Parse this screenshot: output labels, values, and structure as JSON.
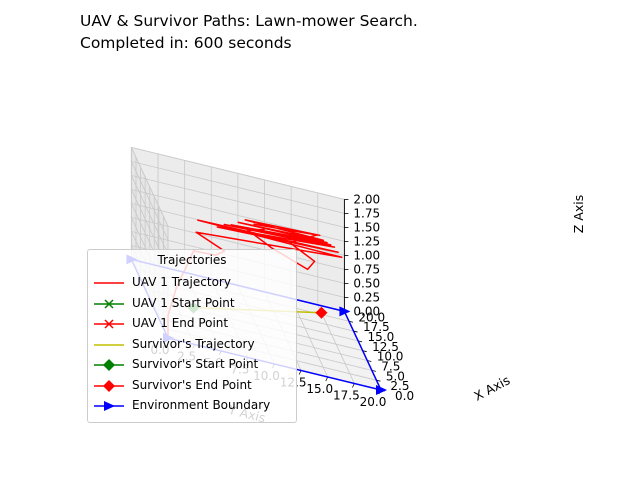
{
  "chart_data": {
    "type": "line",
    "projection": "3d",
    "title": "UAV & Survivor Paths: Lawn-mower Search.",
    "subtitle": "Completed in: 600 seconds",
    "xlabel": "X Axis",
    "ylabel": "Y Axis",
    "zlabel": "Z Axis",
    "xlim": [
      0,
      20
    ],
    "ylim": [
      0,
      20
    ],
    "zlim": [
      0,
      2
    ],
    "x_ticks": [
      "0.0",
      "2.5",
      "5.0",
      "7.5",
      "10.0",
      "12.5",
      "15.0",
      "17.5",
      "20.0"
    ],
    "y_ticks": [
      "0.0",
      "2.5",
      "5.0",
      "7.5",
      "10.0",
      "12.5",
      "15.0",
      "17.5",
      "20.0"
    ],
    "z_ticks": [
      "0.00",
      "0.25",
      "0.50",
      "0.75",
      "1.00",
      "1.25",
      "1.50",
      "1.75",
      "2.00"
    ],
    "grid": true,
    "legend": {
      "title": "Trajectories",
      "placement": "lower-left",
      "entries": [
        {
          "label": "UAV 1 Trajectory",
          "color": "#ff0000",
          "style": "line"
        },
        {
          "label": "UAV 1 Start Point",
          "color": "#008000",
          "style": "x"
        },
        {
          "label": "UAV 1 End Point",
          "color": "#ff0000",
          "style": "x"
        },
        {
          "label": "Survivor's Trajectory",
          "color": "#bfbf00",
          "style": "line"
        },
        {
          "label": "Survivor's Start Point",
          "color": "#008000",
          "style": "diamond"
        },
        {
          "label": "Survivor's End Point",
          "color": "#ff0000",
          "style": "diamond"
        },
        {
          "label": "Environment Boundary",
          "color": "#0000ff",
          "style": "triangle"
        }
      ]
    },
    "series": [
      {
        "name": "UAV 1 Trajectory",
        "color": "#ff0000",
        "points": [
          [
            0,
            0,
            0
          ],
          [
            0,
            0,
            0.4
          ],
          [
            1,
            1,
            0.9
          ],
          [
            2,
            2,
            1.2
          ],
          [
            3,
            3.5,
            1.45
          ],
          [
            5,
            3,
            1.5
          ],
          [
            6,
            4,
            1.55
          ],
          [
            3.5,
            5,
            1.7
          ],
          [
            17,
            4,
            1.95
          ],
          [
            4,
            7,
            1.8
          ],
          [
            17,
            6,
            1.9
          ],
          [
            6,
            8,
            1.7
          ],
          [
            17,
            8,
            1.85
          ],
          [
            7,
            10,
            1.65
          ],
          [
            17,
            10,
            1.75
          ],
          [
            8,
            12,
            1.55
          ],
          [
            17,
            12,
            1.65
          ],
          [
            9,
            14,
            1.5
          ],
          [
            17,
            14,
            1.55
          ],
          [
            10,
            16,
            1.45
          ],
          [
            17,
            16,
            1.5
          ],
          [
            11,
            17,
            1.35
          ],
          [
            17,
            17.5,
            1.4
          ],
          [
            14,
            15,
            1.3
          ],
          [
            16,
            13,
            1.2
          ],
          [
            15,
            11,
            1.15
          ],
          [
            12,
            13,
            1.25
          ],
          [
            10,
            15,
            1.35
          ],
          [
            12,
            17,
            1.3
          ]
        ]
      },
      {
        "name": "Survivor's Trajectory",
        "color": "#bfbf00",
        "points": [
          [
            4.2,
            10.5,
            0
          ],
          [
            17.5,
            18,
            0
          ]
        ]
      },
      {
        "name": "Environment Boundary",
        "color": "#0000ff",
        "points": [
          [
            0,
            0,
            0
          ],
          [
            20,
            0,
            0
          ],
          [
            20,
            20,
            0
          ],
          [
            0,
            20,
            0
          ],
          [
            0,
            0,
            0
          ]
        ]
      }
    ],
    "markers": [
      {
        "name": "Survivor's Start Point",
        "color": "#008000",
        "marker": "diamond",
        "point": [
          4.2,
          10.5,
          0
        ]
      },
      {
        "name": "Survivor's End Point",
        "color": "#ff0000",
        "marker": "diamond",
        "point": [
          17.5,
          18,
          0
        ]
      }
    ]
  }
}
